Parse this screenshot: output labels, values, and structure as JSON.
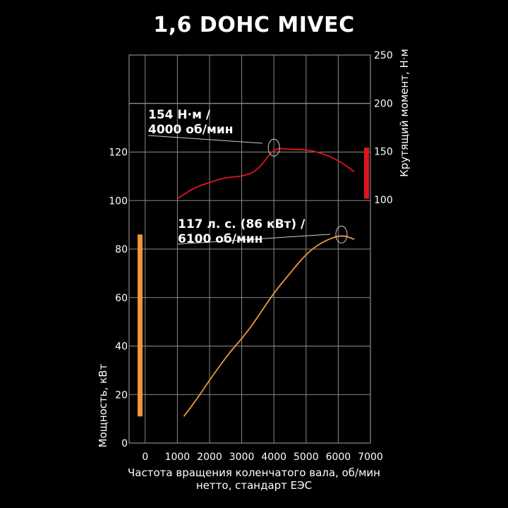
{
  "title": "1,6 DOHC MIVEC",
  "colors": {
    "background": "#000000",
    "grid": "#8a8a8a",
    "torque": "#e0141e",
    "power": "#f0963c",
    "text": "#ffffff"
  },
  "chart_data": {
    "type": "line",
    "title": "1,6 DOHC MIVEC",
    "xlabel": [
      "Частота вращения коленчатого вала, об/мин",
      "нетто, стандарт ЕЭС"
    ],
    "ylabel_left": "Мощность, кВт",
    "ylabel_right": "Крутящий момент, Н·м",
    "xlim": [
      -500,
      7000
    ],
    "ylim_left": [
      0,
      160
    ],
    "ylim_right": [
      100,
      250
    ],
    "x_ticks": [
      0,
      1000,
      2000,
      3000,
      4000,
      5000,
      6000,
      7000
    ],
    "x_tick_labels": [
      "0",
      "1000",
      "2000",
      "3000",
      "4000",
      "5000",
      "6000",
      "7000"
    ],
    "y_left_ticks": [
      0,
      20,
      40,
      60,
      80,
      100,
      120
    ],
    "y_left_tick_labels": [
      "0",
      "20",
      "40",
      "60",
      "80",
      "100",
      "120"
    ],
    "y_right_ticks": [
      100,
      150,
      200,
      250
    ],
    "y_right_tick_labels": [
      "100",
      "150",
      "200",
      "250"
    ],
    "grid": true,
    "series": [
      {
        "axis": "right",
        "color": "#e0141e",
        "x": [
          1000,
          1500,
          2000,
          2500,
          3000,
          3500,
          4000,
          4500,
          5000,
          5500,
          6000,
          6500
        ],
        "y": [
          101,
          112,
          118,
          123,
          124,
          130,
          154,
          152,
          152,
          148,
          141,
          129
        ]
      },
      {
        "axis": "left",
        "color": "#f0963c",
        "x": [
          1200,
          1600,
          2000,
          2600,
          3000,
          3400,
          4000,
          4500,
          5000,
          5500,
          6100,
          6500
        ],
        "y": [
          11,
          18,
          26,
          37,
          43,
          50,
          62,
          70,
          78,
          83,
          86,
          84
        ]
      }
    ],
    "range_bars": [
      {
        "axis": "left",
        "from": 11,
        "to": 86,
        "color": "#f0963c"
      },
      {
        "axis": "right",
        "from": 101,
        "to": 154,
        "color": "#e0141e"
      }
    ],
    "annotations": [
      {
        "lines": [
          "154 Н·м /",
          "4000 об/мин"
        ],
        "x": 4000,
        "y": 154,
        "axis": "right"
      },
      {
        "lines": [
          "117 л. с. (86 кВт) /",
          "6100 об/мин"
        ],
        "x": 6100,
        "y": 86,
        "axis": "left"
      }
    ]
  }
}
